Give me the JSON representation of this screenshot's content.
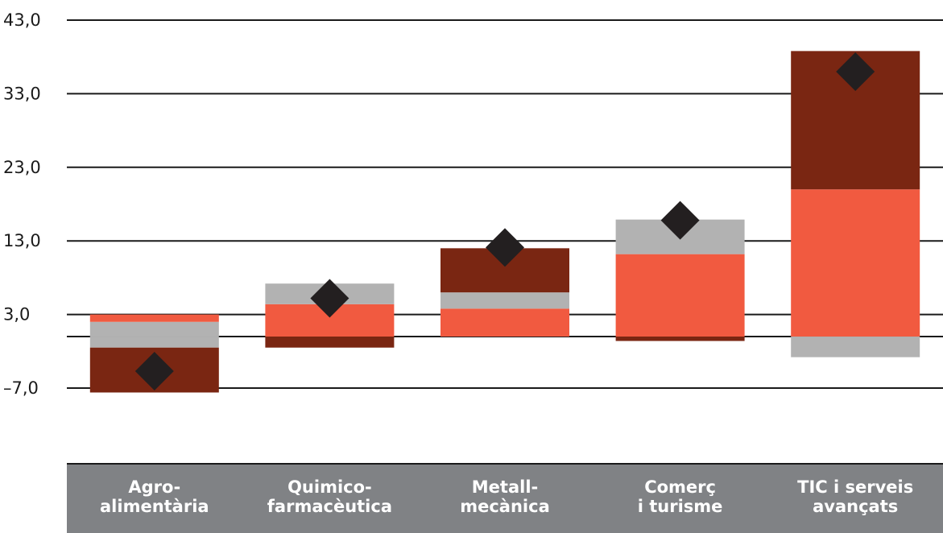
{
  "chart_data": {
    "type": "bar",
    "subtype": "stacked",
    "categories": [
      [
        "Agro-",
        "alimentària"
      ],
      [
        "Quimico-",
        "farmacèutica"
      ],
      [
        "Metall-",
        "mecànica"
      ],
      [
        "Comerç",
        "i turisme"
      ],
      [
        "TIC i serveis",
        "avançats"
      ]
    ],
    "y_ticks": [
      "43,0",
      "33,0",
      "23,0",
      "13,0",
      "3,0",
      "–7,0"
    ],
    "y_tick_values": [
      43,
      33,
      23,
      13,
      3,
      -7
    ],
    "ylim": [
      -7,
      43
    ],
    "grid": true,
    "series": [
      {
        "color": "#f15a40",
        "values": [
          0.0,
          4.4,
          3.8,
          11.2,
          20.0
        ],
        "neg": [
          0,
          0,
          0,
          0,
          0
        ]
      },
      {
        "color": "#b2b2b2",
        "values": [
          2.0,
          2.8,
          2.2,
          4.7,
          0
        ],
        "neg": [
          -1.5,
          0,
          0,
          0,
          -2.8
        ]
      },
      {
        "color": "#7a2612",
        "values": [
          0,
          0,
          6.0,
          0,
          18.8
        ],
        "neg": [
          -6.1,
          -1.5,
          0,
          -0.6,
          0
        ]
      }
    ],
    "red_top_segment": [
      1.0,
      0,
      0,
      0,
      0
    ],
    "markers": {
      "shape": "diamond",
      "color": "#231f20",
      "values": [
        -4.7,
        5.2,
        12.1,
        15.8,
        36.0
      ]
    },
    "zero_line": true
  }
}
